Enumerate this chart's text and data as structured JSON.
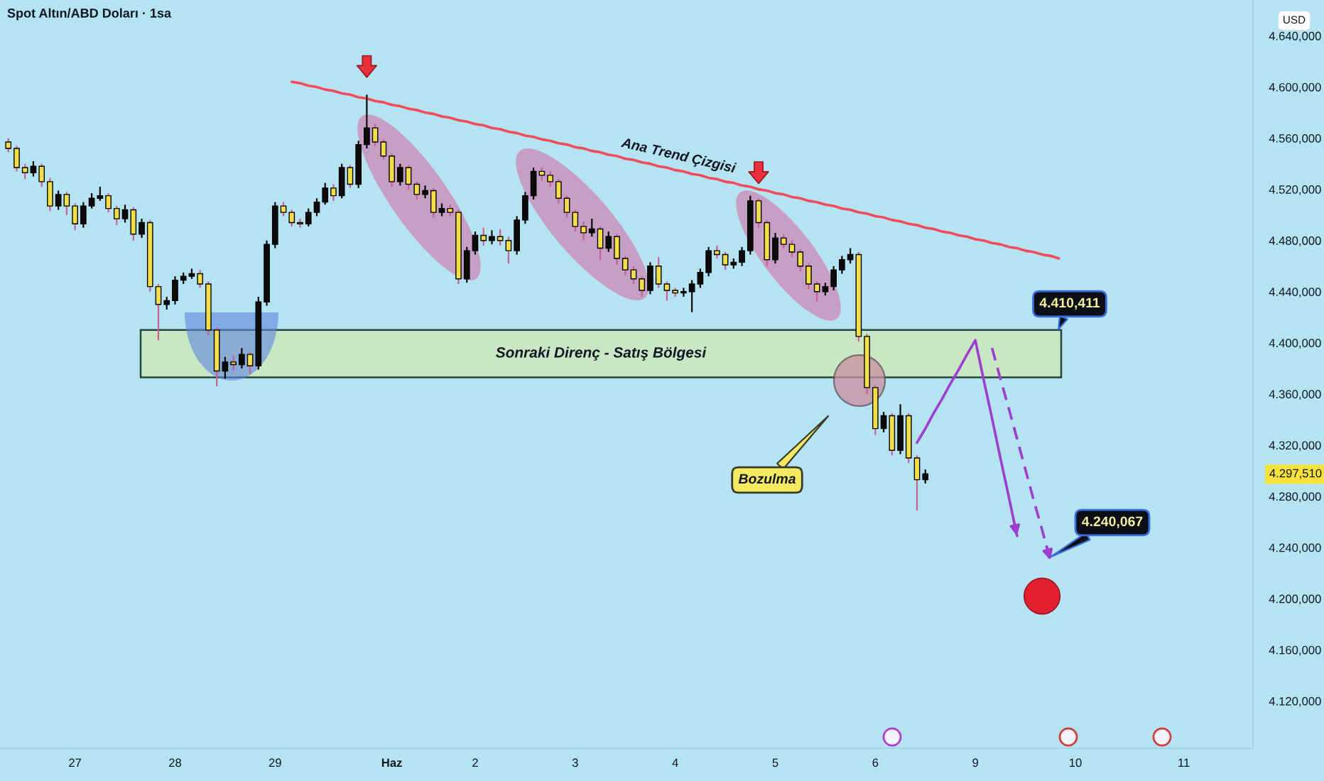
{
  "chart_data": {
    "type": "candlestick",
    "title": "Spot Altın/ABD Doları · 1sa",
    "ylabel": "USD",
    "ylim": [
      4083,
      4668
    ],
    "yticks": [
      {
        "value": 4120,
        "label": "4.120,000"
      },
      {
        "value": 4160,
        "label": "4.160,000"
      },
      {
        "value": 4200,
        "label": "4.200,000"
      },
      {
        "value": 4240,
        "label": "4.240,000"
      },
      {
        "value": 4280,
        "label": "4.280,000"
      },
      {
        "value": 4320,
        "label": "4.320,000"
      },
      {
        "value": 4360,
        "label": "4.360,000"
      },
      {
        "value": 4400,
        "label": "4.400,000"
      },
      {
        "value": 4440,
        "label": "4.440,000"
      },
      {
        "value": 4480,
        "label": "4.480,000"
      },
      {
        "value": 4520,
        "label": "4.520,000"
      },
      {
        "value": 4560,
        "label": "4.560,000"
      },
      {
        "value": 4600,
        "label": "4.600,000"
      },
      {
        "value": 4640,
        "label": "4.640,000"
      }
    ],
    "categories": [
      null,
      null,
      null,
      null,
      null,
      null,
      null,
      null,
      "27",
      null,
      null,
      null,
      null,
      null,
      null,
      null,
      null,
      null,
      null,
      null,
      "28",
      null,
      null,
      null,
      null,
      null,
      null,
      null,
      null,
      null,
      null,
      null,
      "29",
      null,
      null,
      null,
      null,
      null,
      null,
      null,
      null,
      null,
      null,
      null,
      null,
      null,
      "Haz",
      null,
      null,
      null,
      null,
      null,
      null,
      null,
      null,
      null,
      "2",
      null,
      null,
      null,
      null,
      null,
      null,
      null,
      null,
      null,
      null,
      null,
      "3",
      null,
      null,
      null,
      null,
      null,
      null,
      null,
      null,
      null,
      null,
      null,
      "4",
      null,
      null,
      null,
      null,
      null,
      null,
      null,
      null,
      null,
      null,
      null,
      "5",
      null,
      null,
      null,
      null,
      null,
      null,
      null,
      null,
      null,
      null,
      null,
      "6",
      null,
      null,
      null,
      null,
      null,
      null,
      null,
      null,
      null,
      null,
      null,
      "9",
      null,
      null,
      null,
      null,
      null,
      null,
      null,
      null,
      null,
      null,
      null,
      "10",
      null,
      null,
      null,
      null,
      null,
      null,
      null,
      null,
      null,
      null,
      null,
      null,
      "11",
      null,
      null,
      null,
      null,
      null,
      null,
      null,
      null
    ],
    "ohlc": [
      [
        4557,
        4560,
        4549,
        4552
      ],
      [
        4552,
        4554,
        4534,
        4537
      ],
      [
        4537,
        4540,
        4528,
        4533
      ],
      [
        4533,
        4542,
        4530,
        4538
      ],
      [
        4538,
        4540,
        4522,
        4526
      ],
      [
        4526,
        4529,
        4503,
        4507
      ],
      [
        4507,
        4519,
        4504,
        4516
      ],
      [
        4516,
        4518,
        4500,
        4507
      ],
      [
        4507,
        4509,
        4488,
        4493
      ],
      [
        4493,
        4510,
        4490,
        4507
      ],
      [
        4507,
        4517,
        4505,
        4513
      ],
      [
        4513,
        4522,
        4511,
        4515
      ],
      [
        4515,
        4517,
        4502,
        4505
      ],
      [
        4505,
        4507,
        4492,
        4497
      ],
      [
        4497,
        4508,
        4494,
        4504
      ],
      [
        4504,
        4506,
        4480,
        4485
      ],
      [
        4485,
        4497,
        4482,
        4494
      ],
      [
        4494,
        4496,
        4440,
        4444
      ],
      [
        4444,
        4446,
        4402,
        4430
      ],
      [
        4430,
        4436,
        4426,
        4433
      ],
      [
        4433,
        4452,
        4430,
        4449
      ],
      [
        4449,
        4455,
        4446,
        4452
      ],
      [
        4452,
        4458,
        4450,
        4454
      ],
      [
        4454,
        4457,
        4443,
        4446
      ],
      [
        4446,
        4448,
        4406,
        4410
      ],
      [
        4410,
        4412,
        4366,
        4378
      ],
      [
        4378,
        4389,
        4372,
        4385
      ],
      [
        4385,
        4390,
        4378,
        4383
      ],
      [
        4383,
        4396,
        4380,
        4391
      ],
      [
        4391,
        4393,
        4376,
        4382
      ],
      [
        4382,
        4436,
        4379,
        4432
      ],
      [
        4432,
        4480,
        4429,
        4477
      ],
      [
        4477,
        4510,
        4474,
        4507
      ],
      [
        4507,
        4510,
        4499,
        4502
      ],
      [
        4502,
        4504,
        4491,
        4494
      ],
      [
        4494,
        4497,
        4490,
        4493
      ],
      [
        4493,
        4505,
        4491,
        4502
      ],
      [
        4502,
        4513,
        4499,
        4510
      ],
      [
        4510,
        4525,
        4508,
        4521
      ],
      [
        4521,
        4524,
        4511,
        4515
      ],
      [
        4515,
        4540,
        4513,
        4537
      ],
      [
        4537,
        4539,
        4521,
        4524
      ],
      [
        4524,
        4558,
        4521,
        4555
      ],
      [
        4555,
        4594,
        4552,
        4568
      ],
      [
        4568,
        4571,
        4554,
        4557
      ],
      [
        4557,
        4559,
        4543,
        4546
      ],
      [
        4546,
        4548,
        4522,
        4526
      ],
      [
        4526,
        4540,
        4523,
        4537
      ],
      [
        4537,
        4539,
        4520,
        4524
      ],
      [
        4524,
        4526,
        4512,
        4516
      ],
      [
        4516,
        4523,
        4513,
        4519
      ],
      [
        4519,
        4521,
        4498,
        4502
      ],
      [
        4502,
        4509,
        4499,
        4505
      ],
      [
        4505,
        4508,
        4499,
        4502
      ],
      [
        4502,
        4504,
        4446,
        4450
      ],
      [
        4450,
        4475,
        4447,
        4472
      ],
      [
        4472,
        4487,
        4469,
        4484
      ],
      [
        4484,
        4490,
        4476,
        4480
      ],
      [
        4480,
        4488,
        4477,
        4483
      ],
      [
        4483,
        4489,
        4476,
        4480
      ],
      [
        4480,
        4483,
        4462,
        4472
      ],
      [
        4472,
        4499,
        4469,
        4496
      ],
      [
        4496,
        4518,
        4493,
        4515
      ],
      [
        4515,
        4537,
        4512,
        4534
      ],
      [
        4534,
        4537,
        4527,
        4531
      ],
      [
        4531,
        4534,
        4522,
        4526
      ],
      [
        4526,
        4528,
        4509,
        4513
      ],
      [
        4513,
        4515,
        4498,
        4502
      ],
      [
        4502,
        4504,
        4487,
        4491
      ],
      [
        4491,
        4495,
        4480,
        4486
      ],
      [
        4486,
        4497,
        4483,
        4489
      ],
      [
        4489,
        4491,
        4465,
        4474
      ],
      [
        4474,
        4487,
        4471,
        4483
      ],
      [
        4483,
        4485,
        4461,
        4466
      ],
      [
        4466,
        4468,
        4453,
        4457
      ],
      [
        4457,
        4460,
        4446,
        4450
      ],
      [
        4450,
        4452,
        4436,
        4441
      ],
      [
        4441,
        4463,
        4438,
        4460
      ],
      [
        4460,
        4467,
        4443,
        4446
      ],
      [
        4446,
        4448,
        4433,
        4441
      ],
      [
        4441,
        4443,
        4436,
        4439
      ],
      [
        4439,
        4443,
        4436,
        4440
      ],
      [
        4440,
        4449,
        4424,
        4446
      ],
      [
        4446,
        4458,
        4443,
        4455
      ],
      [
        4455,
        4475,
        4452,
        4472
      ],
      [
        4472,
        4476,
        4466,
        4469
      ],
      [
        4469,
        4471,
        4457,
        4461
      ],
      [
        4461,
        4466,
        4458,
        4463
      ],
      [
        4463,
        4475,
        4460,
        4472
      ],
      [
        4472,
        4515,
        4469,
        4511
      ],
      [
        4511,
        4513,
        4490,
        4494
      ],
      [
        4494,
        4496,
        4460,
        4465
      ],
      [
        4465,
        4486,
        4462,
        4482
      ],
      [
        4482,
        4485,
        4474,
        4477
      ],
      [
        4477,
        4480,
        4467,
        4471
      ],
      [
        4471,
        4473,
        4456,
        4460
      ],
      [
        4460,
        4462,
        4442,
        4446
      ],
      [
        4446,
        4448,
        4432,
        4440
      ],
      [
        4440,
        4447,
        4437,
        4444
      ],
      [
        4444,
        4460,
        4441,
        4457
      ],
      [
        4457,
        4468,
        4454,
        4465
      ],
      [
        4465,
        4474,
        4462,
        4469
      ],
      [
        4469,
        4471,
        4401,
        4405
      ],
      [
        4405,
        4407,
        4360,
        4365
      ],
      [
        4365,
        4367,
        4328,
        4333
      ],
      [
        4333,
        4346,
        4330,
        4343
      ],
      [
        4343,
        4345,
        4312,
        4316
      ],
      [
        4316,
        4352,
        4313,
        4343
      ],
      [
        4343,
        4345,
        4306,
        4310
      ],
      [
        4310,
        4312,
        4269,
        4293
      ],
      [
        4293,
        4301,
        4290,
        4297.51
      ],
      null,
      null,
      null,
      null,
      null,
      null,
      null,
      null,
      null,
      null,
      null,
      null,
      null,
      null,
      null,
      null,
      null,
      null,
      null,
      null,
      null,
      null,
      null,
      null,
      null,
      null,
      null,
      null,
      null,
      null,
      null,
      null,
      null,
      null,
      null,
      null,
      null,
      null,
      null
    ],
    "colors": [
      "#f2df47",
      "#f2df47",
      "#f2df47",
      "#0b0b0b",
      "#f2df47",
      "#f2df47",
      "#0b0b0b",
      "#f2df47",
      "#f2df47",
      "#0b0b0b",
      "#0b0b0b",
      "#0b0b0b",
      "#f2df47",
      "#f2df47",
      "#0b0b0b",
      "#f2df47",
      "#0b0b0b",
      "#f2df47",
      "#f2df47",
      "#0b0b0b",
      "#0b0b0b",
      "#0b0b0b",
      "#0b0b0b",
      "#f2df47",
      "#f2df47",
      "#f2df47",
      "#0b0b0b",
      "#f2df47",
      "#0b0b0b",
      "#f2df47",
      "#0b0b0b",
      "#0b0b0b",
      "#0b0b0b",
      "#f2df47",
      "#f2df47",
      "#f2df47",
      "#0b0b0b",
      "#0b0b0b",
      "#0b0b0b",
      "#f2df47",
      "#0b0b0b",
      "#f2df47",
      "#0b0b0b",
      "#0b0b0b",
      "#f2df47",
      "#f2df47",
      "#f2df47",
      "#0b0b0b",
      "#f2df47",
      "#f2df47",
      "#0b0b0b",
      "#f2df47",
      "#0b0b0b",
      "#f2df47",
      "#f2df47",
      "#0b0b0b",
      "#0b0b0b",
      "#f2df47",
      "#0b0b0b",
      "#f2df47",
      "#f2df47",
      "#0b0b0b",
      "#0b0b0b",
      "#0b0b0b",
      "#f2df47",
      "#f2df47",
      "#f2df47",
      "#f2df47",
      "#f2df47",
      "#f2df47",
      "#0b0b0b",
      "#f2df47",
      "#0b0b0b",
      "#f2df47",
      "#f2df47",
      "#f2df47",
      "#f2df47",
      "#0b0b0b",
      "#f2df47",
      "#f2df47",
      "#f2df47",
      "#0b0b0b",
      "#0b0b0b",
      "#0b0b0b",
      "#0b0b0b",
      "#f2df47",
      "#f2df47",
      "#0b0b0b",
      "#0b0b0b",
      "#0b0b0b",
      "#f2df47",
      "#f2df47",
      "#0b0b0b",
      "#f2df47",
      "#f2df47",
      "#f2df47",
      "#f2df47",
      "#f2df47",
      "#0b0b0b",
      "#0b0b0b",
      "#0b0b0b",
      "#0b0b0b",
      "#f2df47",
      "#f2df47",
      "#f2df47",
      "#0b0b0b",
      "#f2df47",
      "#0b0b0b",
      "#f2df47",
      "#f2df47",
      "#0b0b0b",
      null,
      null,
      null,
      null,
      null,
      null,
      null,
      null,
      null,
      null,
      null,
      null,
      null,
      null,
      null,
      null,
      null,
      null,
      null,
      null,
      null,
      null,
      null,
      null,
      null,
      null,
      null,
      null,
      null,
      null,
      null,
      null,
      null,
      null,
      null,
      null,
      null,
      null,
      null
    ],
    "bands": [
      {
        "axis": "y",
        "from": 4373,
        "to": 4410,
        "label": "Sonraki Direnç - Satış Bölgesi",
        "color": "#c9e7c4"
      }
    ],
    "series": [
      {
        "type": "line",
        "name": "Ana Trend Çizgisi",
        "color": "#f04c5c",
        "values": [
          null,
          null,
          null,
          null,
          null,
          null,
          null,
          null,
          null,
          null,
          null,
          null,
          null,
          null,
          null,
          null,
          null,
          null,
          null,
          null,
          null,
          null,
          null,
          null,
          null,
          null,
          null,
          null,
          null,
          null,
          null,
          null,
          null,
          null,
          4604,
          4603,
          4601,
          4600,
          4598,
          4597,
          4595,
          4594,
          4592,
          4591,
          4589,
          4588,
          4586,
          4585,
          4583,
          4582,
          4580,
          4579,
          4577,
          4576,
          4574,
          4573,
          4571,
          4570,
          4568,
          4567,
          4565,
          4564,
          4562,
          4561,
          4559,
          4558,
          4556,
          4555,
          4553,
          4552,
          4550,
          4549,
          4547,
          4546,
          4544,
          4543,
          4541,
          4540,
          4538,
          4537,
          4535,
          4534,
          4532,
          4531,
          4529,
          4528,
          4526,
          4525,
          4523,
          4522,
          4520,
          4519,
          4517,
          4516,
          4514,
          4513,
          4511,
          4510,
          4508,
          4507,
          4505,
          4504,
          4502,
          4501,
          4499,
          4498,
          4496,
          4495,
          4493,
          4492,
          4490,
          4489,
          4487,
          4486,
          4484,
          4483,
          4481,
          4480,
          4478,
          4477,
          4475,
          4474,
          4472,
          4471,
          4469,
          4468,
          4466,
          null,
          null,
          null,
          null,
          null,
          null,
          null,
          null,
          null,
          null,
          null,
          null,
          null,
          null,
          null,
          null,
          null,
          null,
          null,
          null,
          null,
          null,
          null
        ]
      },
      {
        "type": "line",
        "color": "#9d3fce",
        "values": [
          null,
          null,
          null,
          null,
          null,
          null,
          null,
          null,
          null,
          null,
          null,
          null,
          null,
          null,
          null,
          null,
          null,
          null,
          null,
          null,
          null,
          null,
          null,
          null,
          null,
          null,
          null,
          null,
          null,
          null,
          null,
          null,
          null,
          null,
          null,
          null,
          null,
          null,
          null,
          null,
          null,
          null,
          null,
          null,
          null,
          null,
          null,
          null,
          null,
          null,
          null,
          null,
          null,
          null,
          null,
          null,
          null,
          null,
          null,
          null,
          null,
          null,
          null,
          null,
          null,
          null,
          null,
          null,
          null,
          null,
          null,
          null,
          null,
          null,
          null,
          null,
          null,
          null,
          null,
          null,
          null,
          null,
          null,
          null,
          null,
          null,
          null,
          null,
          null,
          null,
          null,
          null,
          null,
          null,
          null,
          null,
          null,
          null,
          null,
          null,
          null,
          null,
          null,
          null,
          null,
          null,
          null,
          null,
          null,
          4322,
          4333,
          4345,
          4356,
          4368,
          4379,
          4391,
          4402,
          4371,
          4341,
          4310,
          4280,
          4249,
          null,
          null,
          null,
          null,
          null,
          null,
          null,
          null,
          null,
          null,
          null,
          null,
          null,
          null,
          null,
          null,
          null,
          null,
          null,
          null,
          null,
          null,
          null,
          null,
          null,
          null,
          null,
          null
        ]
      },
      {
        "type": "line",
        "color": "#9d3fce",
        "line_style": "dashed",
        "values": [
          null,
          null,
          null,
          null,
          null,
          null,
          null,
          null,
          null,
          null,
          null,
          null,
          null,
          null,
          null,
          null,
          null,
          null,
          null,
          null,
          null,
          null,
          null,
          null,
          null,
          null,
          null,
          null,
          null,
          null,
          null,
          null,
          null,
          null,
          null,
          null,
          null,
          null,
          null,
          null,
          null,
          null,
          null,
          null,
          null,
          null,
          null,
          null,
          null,
          null,
          null,
          null,
          null,
          null,
          null,
          null,
          null,
          null,
          null,
          null,
          null,
          null,
          null,
          null,
          null,
          null,
          null,
          null,
          null,
          null,
          null,
          null,
          null,
          null,
          null,
          null,
          null,
          null,
          null,
          null,
          null,
          null,
          null,
          null,
          null,
          null,
          null,
          null,
          null,
          null,
          null,
          null,
          null,
          null,
          null,
          null,
          null,
          null,
          null,
          null,
          null,
          null,
          null,
          null,
          null,
          null,
          null,
          null,
          null,
          null,
          null,
          null,
          null,
          null,
          null,
          null,
          null,
          null,
          4396,
          4372,
          4349,
          4325,
          4301,
          4277,
          4254,
          4230,
          null,
          null,
          null,
          null,
          null,
          null,
          null,
          null,
          null,
          null,
          null,
          null,
          null,
          null,
          null,
          null,
          null,
          null,
          null,
          null,
          null,
          null,
          null,
          null
        ]
      },
      {
        "type": "scatter",
        "color": "#e8313c",
        "marker": "triangle",
        "values": [
          null,
          null,
          null,
          null,
          null,
          null,
          null,
          null,
          null,
          null,
          null,
          null,
          null,
          null,
          null,
          null,
          null,
          null,
          null,
          null,
          null,
          null,
          null,
          null,
          null,
          null,
          null,
          null,
          null,
          null,
          null,
          null,
          null,
          null,
          null,
          null,
          null,
          null,
          null,
          null,
          null,
          null,
          null,
          4616,
          null,
          null,
          null,
          null,
          null,
          null,
          null,
          null,
          null,
          null,
          null,
          null,
          null,
          null,
          null,
          null,
          null,
          null,
          null,
          null,
          null,
          null,
          null,
          null,
          null,
          null,
          null,
          null,
          null,
          null,
          null,
          null,
          null,
          null,
          null,
          null,
          null,
          null,
          null,
          null,
          null,
          null,
          null,
          null,
          null,
          null,
          4533,
          null,
          null,
          null,
          null,
          null,
          null,
          null,
          null,
          null,
          null,
          null,
          null,
          null,
          null,
          null,
          null,
          null,
          null,
          null,
          null,
          null,
          null,
          null,
          null,
          null,
          null,
          null,
          null,
          null,
          null,
          null,
          null,
          null,
          null,
          null,
          null,
          null,
          null,
          null,
          null,
          null,
          null,
          null,
          null,
          null,
          null,
          null,
          null,
          null,
          null,
          null,
          null,
          null,
          null,
          null,
          null,
          null,
          null,
          null
        ]
      },
      {
        "type": "scatter",
        "color": "#e3202f",
        "marker": "circle",
        "values": [
          null,
          null,
          null,
          null,
          null,
          null,
          null,
          null,
          null,
          null,
          null,
          null,
          null,
          null,
          null,
          null,
          null,
          null,
          null,
          null,
          null,
          null,
          null,
          null,
          null,
          null,
          null,
          null,
          null,
          null,
          null,
          null,
          null,
          null,
          null,
          null,
          null,
          null,
          null,
          null,
          null,
          null,
          null,
          null,
          null,
          null,
          null,
          null,
          null,
          null,
          null,
          null,
          null,
          null,
          null,
          null,
          null,
          null,
          null,
          null,
          null,
          null,
          null,
          null,
          null,
          null,
          null,
          null,
          null,
          null,
          null,
          null,
          null,
          null,
          null,
          null,
          null,
          null,
          null,
          null,
          null,
          null,
          null,
          null,
          null,
          null,
          null,
          null,
          null,
          null,
          null,
          null,
          null,
          null,
          null,
          null,
          null,
          null,
          null,
          null,
          null,
          null,
          null,
          null,
          null,
          null,
          null,
          null,
          null,
          null,
          null,
          null,
          null,
          null,
          null,
          null,
          null,
          null,
          null,
          null,
          null,
          null,
          null,
          null,
          4202,
          null,
          null,
          null,
          null,
          null,
          null,
          null,
          null,
          null,
          null,
          null,
          null,
          null,
          null,
          null,
          null,
          null,
          null,
          null,
          null,
          null,
          null,
          null,
          null,
          null
        ]
      }
    ],
    "annotations": [
      "4.410,411",
      "4.240,067",
      "Bozulma",
      "4.297,510"
    ]
  }
}
